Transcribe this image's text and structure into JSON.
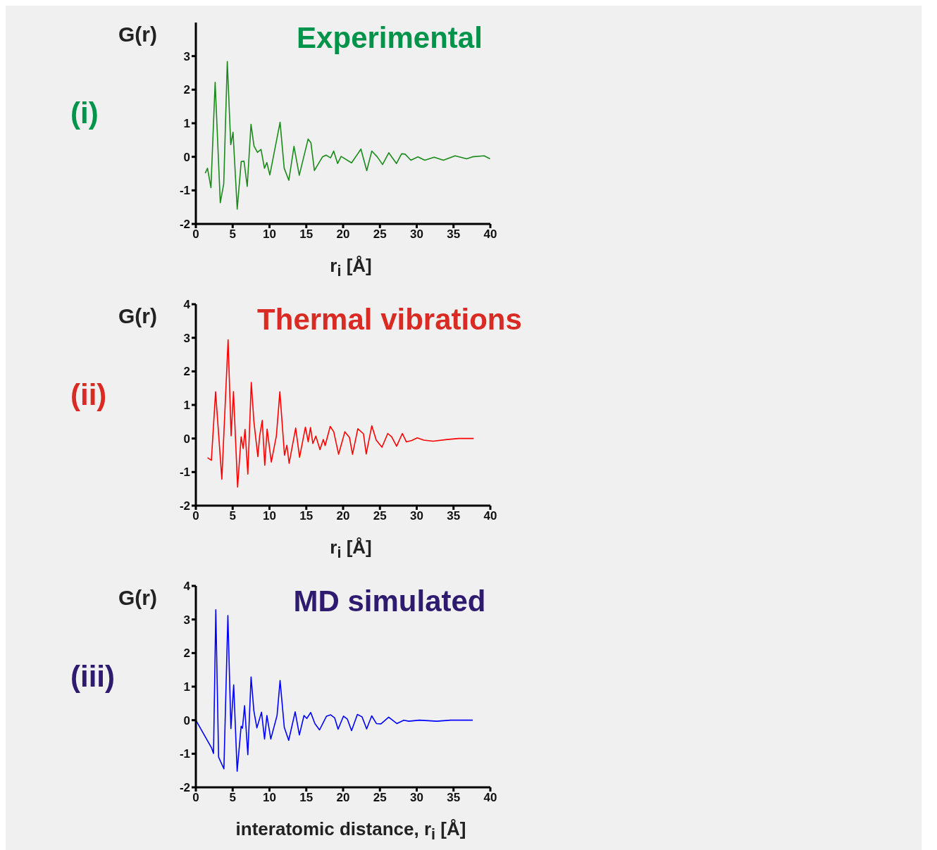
{
  "chart_data": [
    {
      "type": "line",
      "title": "Experimental",
      "xlabel": "r$_{i}$ [Å]",
      "ylabel": "G(r)",
      "annotations": [
        "(i)"
      ],
      "marker": "none",
      "xlim": [
        0,
        40
      ],
      "xticks": [
        0,
        5,
        10,
        15,
        20,
        25,
        30,
        35,
        40
      ],
      "ylim": [
        -2,
        4
      ],
      "yticks": [
        -2,
        -1,
        0,
        1,
        2,
        3
      ],
      "series": [
        {
          "color": "#1a8a1a",
          "x": [
            1.27,
            1.58,
            2.05,
            2.62,
            3.32,
            3.79,
            4.27,
            4.74,
            5.05,
            5.62,
            6.16,
            6.54,
            6.98,
            7.49,
            7.9,
            8.37,
            8.85,
            9.32,
            9.64,
            10.05,
            11.44,
            12.0,
            12.63,
            13.33,
            14.05,
            15.25,
            15.63,
            16.1,
            17.21,
            17.68,
            18.3,
            18.72,
            19.26,
            19.73,
            21.15,
            22.42,
            23.21,
            23.9,
            24.63,
            25.36,
            26.21,
            27.25,
            27.95,
            28.42,
            29.21,
            30.16,
            31.1,
            32.37,
            33.63,
            35.21,
            36.79,
            37.58,
            39.16,
            39.96
          ],
          "values": [
            -0.49,
            -0.34,
            -0.92,
            2.22,
            -1.37,
            -0.8,
            2.84,
            0.36,
            0.73,
            -1.56,
            -0.14,
            -0.13,
            -0.88,
            0.97,
            0.32,
            0.13,
            0.22,
            -0.34,
            -0.17,
            -0.54,
            1.03,
            -0.34,
            -0.7,
            0.31,
            -0.55,
            0.53,
            0.42,
            -0.41,
            0.0,
            0.05,
            -0.03,
            0.17,
            -0.2,
            0.01,
            -0.18,
            0.23,
            -0.41,
            0.17,
            0.0,
            -0.23,
            0.12,
            -0.2,
            0.09,
            0.08,
            -0.1,
            0.0,
            -0.1,
            -0.01,
            -0.1,
            0.03,
            -0.06,
            0.0,
            0.03,
            -0.06
          ]
        }
      ]
    },
    {
      "type": "line",
      "title": "Thermal vibrations",
      "xlabel": "r$_{i}$ [Å]",
      "ylabel": "G(r)",
      "annotations": [
        "(ii)"
      ],
      "marker": "none",
      "xlim": [
        0,
        40
      ],
      "xticks": [
        0,
        5,
        10,
        15,
        20,
        25,
        30,
        35,
        40
      ],
      "ylim": [
        -2,
        4
      ],
      "yticks": [
        -2,
        -1,
        0,
        1,
        2,
        3,
        4
      ],
      "series": [
        {
          "color": "#ff0000",
          "x": [
            1.58,
            2.11,
            2.68,
            3.53,
            4.38,
            4.79,
            5.11,
            5.67,
            6.15,
            6.43,
            6.68,
            7.06,
            7.53,
            7.88,
            8.42,
            8.67,
            9.02,
            9.36,
            9.68,
            10.25,
            10.94,
            11.41,
            12.04,
            12.36,
            12.67,
            13.56,
            14.09,
            14.88,
            15.26,
            15.57,
            15.89,
            16.3,
            16.86,
            17.31,
            17.56,
            18.25,
            18.73,
            19.39,
            20.24,
            20.87,
            21.28,
            22.0,
            22.77,
            23.14,
            23.9,
            24.5,
            25.28,
            26.07,
            26.6,
            27.27,
            28.05,
            28.59,
            29.32,
            30.07,
            30.96,
            32.22,
            34.11,
            35.69,
            37.74
          ],
          "values": [
            -0.57,
            -0.65,
            1.39,
            -1.21,
            2.94,
            0.08,
            1.4,
            -1.45,
            0.05,
            -0.3,
            0.27,
            -1.06,
            1.67,
            0.51,
            -0.54,
            0.08,
            0.54,
            -0.8,
            0.28,
            -0.7,
            0.08,
            1.39,
            -0.5,
            -0.2,
            -0.74,
            0.31,
            -0.56,
            0.34,
            -0.1,
            0.33,
            -0.15,
            0.07,
            -0.33,
            -0.03,
            -0.21,
            0.36,
            0.2,
            -0.47,
            0.2,
            0.03,
            -0.47,
            0.29,
            0.14,
            -0.46,
            0.38,
            -0.05,
            -0.26,
            0.15,
            0.05,
            -0.23,
            0.15,
            -0.1,
            -0.06,
            0.02,
            -0.05,
            -0.08,
            -0.03,
            0.0,
            0.0
          ]
        }
      ]
    },
    {
      "type": "line",
      "title": "MD simulated",
      "xlabel": "interatomic distance, r$_{i}$ [Å]",
      "ylabel": "G(r)",
      "annotations": [
        "(iii)"
      ],
      "marker": "none",
      "xlim": [
        0,
        40
      ],
      "xticks": [
        0,
        5,
        10,
        15,
        20,
        25,
        30,
        35,
        40
      ],
      "ylim": [
        -2,
        4
      ],
      "yticks": [
        -2,
        -1,
        0,
        1,
        2,
        3,
        4
      ],
      "series": [
        {
          "color": "#0000ff",
          "x": [
            0,
            2.14,
            2.4,
            2.71,
            3.09,
            3.81,
            4.35,
            4.76,
            5.14,
            5.61,
            6.15,
            6.33,
            6.62,
            7.06,
            7.5,
            7.88,
            8.29,
            8.92,
            9.33,
            9.65,
            10.18,
            11.03,
            11.44,
            12.01,
            12.61,
            13.49,
            14.06,
            14.69,
            15.07,
            15.6,
            16.17,
            16.8,
            17.75,
            18.32,
            18.85,
            19.32,
            20.05,
            20.58,
            21.15,
            21.94,
            22.57,
            23.2,
            23.89,
            24.52,
            25.15,
            26.19,
            27.3,
            28.24,
            28.94,
            30.36,
            32.73,
            34.62,
            37.61
          ],
          "values": [
            0.0,
            -0.83,
            -0.99,
            3.29,
            -1.1,
            -1.45,
            3.12,
            -0.25,
            1.05,
            -1.52,
            -0.18,
            -0.24,
            0.43,
            -1.03,
            1.29,
            0.28,
            -0.23,
            0.24,
            -0.56,
            0.14,
            -0.56,
            0.14,
            1.18,
            -0.21,
            -0.6,
            0.25,
            -0.44,
            0.14,
            0.05,
            0.23,
            -0.1,
            -0.29,
            0.12,
            0.16,
            0.07,
            -0.27,
            0.12,
            0.03,
            -0.31,
            0.17,
            0.1,
            -0.26,
            0.13,
            -0.1,
            -0.11,
            0.09,
            -0.1,
            0.0,
            -0.03,
            0.0,
            -0.03,
            0.0,
            0.0
          ]
        }
      ]
    }
  ]
}
